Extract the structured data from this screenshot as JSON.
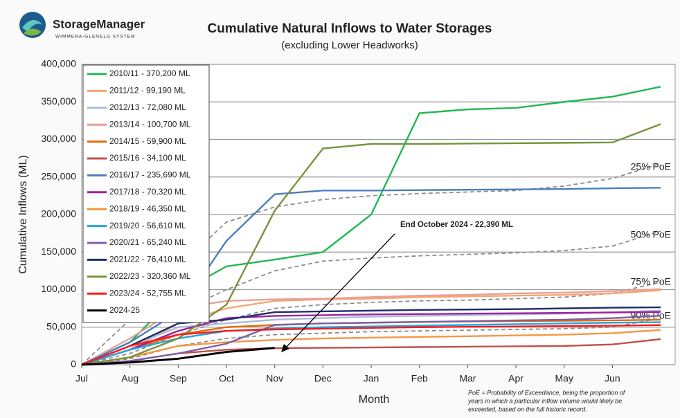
{
  "logo": {
    "name": "StorageManager",
    "tagline": "WIMMERA-GLENELG SYSTEM"
  },
  "chart_data": {
    "type": "line",
    "title": "Cumulative Natural Inflows to Water Storages",
    "subtitle": "(excluding Lower Headworks)",
    "x_label": "Month",
    "y_label": "Cumulative Inflows (ML)",
    "x": [
      0,
      1,
      2,
      3,
      4,
      5,
      6,
      7,
      8,
      9,
      10,
      11,
      12
    ],
    "xlim": [
      0,
      12.3
    ],
    "xticks": [
      {
        "value": 0,
        "label": "Jul"
      },
      {
        "value": 1,
        "label": "Aug"
      },
      {
        "value": 2,
        "label": "Sep"
      },
      {
        "value": 3,
        "label": "Oct"
      },
      {
        "value": 4,
        "label": "Nov"
      },
      {
        "value": 5,
        "label": "Dec"
      },
      {
        "value": 6,
        "label": "Jan"
      },
      {
        "value": 7,
        "label": "Feb"
      },
      {
        "value": 8,
        "label": "Mar"
      },
      {
        "value": 9,
        "label": "Apr"
      },
      {
        "value": 10,
        "label": "May"
      },
      {
        "value": 11,
        "label": "Jun"
      }
    ],
    "ylim": [
      0,
      400000
    ],
    "yticks": [
      0,
      {
        "value": 50000,
        "label": "50,000"
      },
      {
        "value": 100000,
        "label": "100,000"
      },
      {
        "value": 150000,
        "label": "150,000"
      },
      {
        "value": 200000,
        "label": "200,000"
      },
      {
        "value": 250000,
        "label": "250,000"
      },
      {
        "value": 300000,
        "label": "300,000"
      },
      {
        "value": 350000,
        "label": "350,000"
      },
      {
        "value": 400000,
        "label": "400,000"
      }
    ],
    "grid": true,
    "legend": "upper left",
    "series": [
      {
        "name": "2010/11 - 370,200 ML",
        "color": "#1fb850",
        "values": [
          0,
          30000,
          95000,
          131000,
          140000,
          150000,
          200000,
          335000,
          340000,
          342000,
          350000,
          357000,
          370200
        ]
      },
      {
        "name": "2011/12 - 99,190 ML",
        "color": "#f7a474",
        "values": [
          0,
          20000,
          55000,
          75000,
          85000,
          87000,
          88000,
          90000,
          91000,
          92000,
          93000,
          95000,
          99190
        ]
      },
      {
        "name": "2012/13 - 72,080 ML",
        "color": "#a9bcd8",
        "values": [
          0,
          25000,
          50000,
          55000,
          60000,
          62000,
          64000,
          65000,
          66000,
          67000,
          68000,
          70000,
          72080
        ]
      },
      {
        "name": "2013/14 - 100,700 ML",
        "color": "#e6a195",
        "values": [
          0,
          35000,
          75000,
          85000,
          87000,
          88000,
          90000,
          92000,
          93000,
          95000,
          96000,
          98000,
          100700
        ]
      },
      {
        "name": "2014/15 - 59,900 ML",
        "color": "#e46c0a",
        "values": [
          0,
          20000,
          40000,
          50000,
          53000,
          55000,
          56000,
          57000,
          57500,
          58000,
          58500,
          59000,
          59900
        ]
      },
      {
        "name": "2015/16 - 34,100 ML",
        "color": "#c0504d",
        "values": [
          0,
          5000,
          15000,
          20000,
          22000,
          22500,
          23000,
          23500,
          24000,
          24500,
          25000,
          27000,
          34100
        ]
      },
      {
        "name": "2016/17 - 235,690 ML",
        "color": "#4a7ebb",
        "values": [
          0,
          30000,
          70000,
          165000,
          227000,
          232000,
          232000,
          232500,
          233000,
          233500,
          234000,
          235000,
          235690
        ]
      },
      {
        "name": "2017/18 - 70,320 ML",
        "color": "#a020a0",
        "values": [
          0,
          20000,
          45000,
          62000,
          65000,
          66000,
          67000,
          67500,
          68000,
          68500,
          69000,
          69500,
          70320
        ]
      },
      {
        "name": "2018/19 - 46,350 ML",
        "color": "#f79646",
        "values": [
          0,
          10000,
          25000,
          30000,
          33000,
          35000,
          36000,
          37000,
          38000,
          39000,
          40000,
          42000,
          46350
        ]
      },
      {
        "name": "2019/20 - 56,610 ML",
        "color": "#1ea7e1",
        "values": [
          0,
          20000,
          35000,
          45000,
          48000,
          50000,
          51000,
          52000,
          53000,
          54000,
          55000,
          56000,
          56610
        ]
      },
      {
        "name": "2020/21 - 65,240 ML",
        "color": "#7c5fa8",
        "values": [
          0,
          5000,
          15000,
          28000,
          53000,
          55000,
          56000,
          57000,
          58000,
          59000,
          60000,
          62000,
          65240
        ]
      },
      {
        "name": "2021/22 - 76,410 ML",
        "color": "#1f2d6b",
        "values": [
          0,
          25000,
          55000,
          60000,
          70000,
          71000,
          72000,
          73000,
          73500,
          74000,
          75000,
          76000,
          76410
        ]
      },
      {
        "name": "2022/23 - 320,360 ML",
        "color": "#76933c",
        "values": [
          0,
          10000,
          35000,
          80000,
          205000,
          288000,
          294000,
          294000,
          294500,
          295000,
          295500,
          296000,
          320360
        ]
      },
      {
        "name": "2023/24 - 52,755 ML",
        "color": "#ff1a1a",
        "values": [
          0,
          25000,
          40000,
          45000,
          47000,
          48000,
          49000,
          50000,
          50500,
          51000,
          51500,
          52000,
          52755
        ]
      },
      {
        "name": "2024-25",
        "color": "#000000",
        "values": [
          0,
          3000,
          8000,
          17000,
          22390,
          null,
          null,
          null,
          null,
          null,
          null,
          null,
          null
        ]
      }
    ],
    "poe_color": "#8c8c8c",
    "poe_lines": [
      {
        "name": "25% PoE",
        "values": [
          0,
          60000,
          130000,
          190000,
          210000,
          220000,
          225000,
          228000,
          230000,
          232000,
          238000,
          248000,
          268000
        ]
      },
      {
        "name": "50% PoE",
        "values": [
          0,
          30000,
          70000,
          100000,
          125000,
          138000,
          142000,
          145000,
          147000,
          149000,
          152000,
          158000,
          178000
        ]
      },
      {
        "name": "75% PoE",
        "values": [
          0,
          15000,
          40000,
          60000,
          75000,
          80000,
          83000,
          85000,
          86000,
          88000,
          90000,
          95000,
          110000
        ]
      },
      {
        "name": "90% PoE",
        "values": [
          0,
          8000,
          25000,
          35000,
          40000,
          42000,
          44000,
          45000,
          46000,
          47000,
          48000,
          50000,
          62000
        ]
      }
    ],
    "annotation": "End October 2024 - 22,390 ML",
    "footnote": [
      "PoE = Probability of Exceedance, being the proportion of",
      "years in which a particular inflow volume would likely be",
      "exceeded, based on the full historic record."
    ]
  }
}
